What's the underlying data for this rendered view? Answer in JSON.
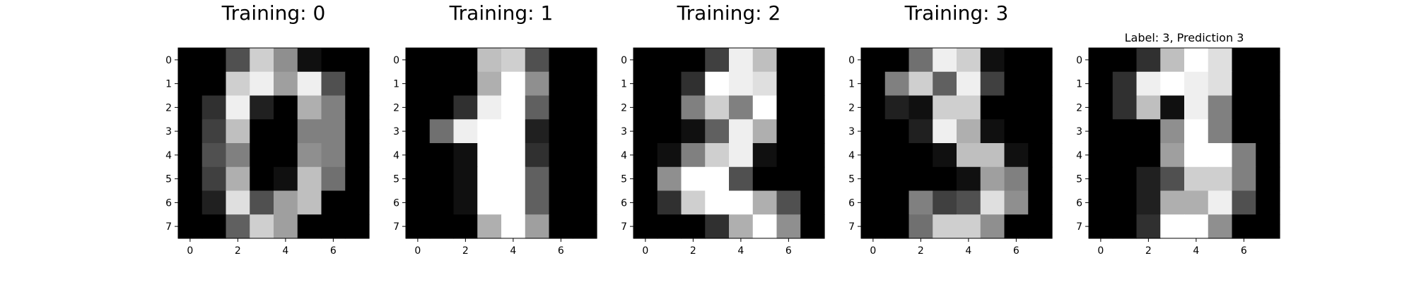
{
  "chart_data": [
    {
      "type": "heatmap",
      "title": "Training: 0",
      "colormap": "gray",
      "x_ticks": [
        "0",
        "2",
        "4",
        "6"
      ],
      "y_ticks": [
        "0",
        "1",
        "2",
        "3",
        "4",
        "5",
        "6",
        "7"
      ],
      "matrix": [
        [
          0,
          0,
          5,
          13,
          9,
          1,
          0,
          0
        ],
        [
          0,
          0,
          13,
          15,
          10,
          15,
          5,
          0
        ],
        [
          0,
          3,
          15,
          2,
          0,
          11,
          8,
          0
        ],
        [
          0,
          4,
          12,
          0,
          0,
          8,
          8,
          0
        ],
        [
          0,
          5,
          8,
          0,
          0,
          9,
          8,
          0
        ],
        [
          0,
          4,
          11,
          0,
          1,
          12,
          7,
          0
        ],
        [
          0,
          2,
          14,
          5,
          10,
          12,
          0,
          0
        ],
        [
          0,
          0,
          6,
          13,
          10,
          0,
          0,
          0
        ]
      ],
      "vmin": 0,
      "vmax": 16
    },
    {
      "type": "heatmap",
      "title": "Training: 1",
      "colormap": "gray",
      "x_ticks": [
        "0",
        "2",
        "4",
        "6"
      ],
      "y_ticks": [
        "0",
        "1",
        "2",
        "3",
        "4",
        "5",
        "6",
        "7"
      ],
      "matrix": [
        [
          0,
          0,
          0,
          12,
          13,
          5,
          0,
          0
        ],
        [
          0,
          0,
          0,
          11,
          16,
          9,
          0,
          0
        ],
        [
          0,
          0,
          3,
          15,
          16,
          6,
          0,
          0
        ],
        [
          0,
          7,
          15,
          16,
          16,
          2,
          0,
          0
        ],
        [
          0,
          0,
          1,
          16,
          16,
          3,
          0,
          0
        ],
        [
          0,
          0,
          1,
          16,
          16,
          6,
          0,
          0
        ],
        [
          0,
          0,
          1,
          16,
          16,
          6,
          0,
          0
        ],
        [
          0,
          0,
          0,
          11,
          16,
          10,
          0,
          0
        ]
      ],
      "vmin": 0,
      "vmax": 16
    },
    {
      "type": "heatmap",
      "title": "Training: 2",
      "colormap": "gray",
      "x_ticks": [
        "0",
        "2",
        "4",
        "6"
      ],
      "y_ticks": [
        "0",
        "1",
        "2",
        "3",
        "4",
        "5",
        "6",
        "7"
      ],
      "matrix": [
        [
          0,
          0,
          0,
          4,
          15,
          12,
          0,
          0
        ],
        [
          0,
          0,
          3,
          16,
          15,
          14,
          0,
          0
        ],
        [
          0,
          0,
          8,
          13,
          8,
          16,
          0,
          0
        ],
        [
          0,
          0,
          1,
          6,
          15,
          11,
          0,
          0
        ],
        [
          0,
          1,
          8,
          13,
          15,
          1,
          0,
          0
        ],
        [
          0,
          9,
          16,
          16,
          5,
          0,
          0,
          0
        ],
        [
          0,
          3,
          13,
          16,
          16,
          11,
          5,
          0
        ],
        [
          0,
          0,
          0,
          3,
          11,
          16,
          9,
          0
        ]
      ],
      "vmin": 0,
      "vmax": 16
    },
    {
      "type": "heatmap",
      "title": "Training: 3",
      "colormap": "gray",
      "x_ticks": [
        "0",
        "2",
        "4",
        "6"
      ],
      "y_ticks": [
        "0",
        "1",
        "2",
        "3",
        "4",
        "5",
        "6",
        "7"
      ],
      "matrix": [
        [
          0,
          0,
          7,
          15,
          13,
          1,
          0,
          0
        ],
        [
          0,
          8,
          13,
          6,
          15,
          4,
          0,
          0
        ],
        [
          0,
          2,
          1,
          13,
          13,
          0,
          0,
          0
        ],
        [
          0,
          0,
          2,
          15,
          11,
          1,
          0,
          0
        ],
        [
          0,
          0,
          0,
          1,
          12,
          12,
          1,
          0
        ],
        [
          0,
          0,
          0,
          0,
          1,
          10,
          8,
          0
        ],
        [
          0,
          0,
          8,
          4,
          5,
          14,
          9,
          0
        ],
        [
          0,
          0,
          7,
          13,
          13,
          9,
          0,
          0
        ]
      ],
      "vmin": 0,
      "vmax": 16
    },
    {
      "type": "heatmap",
      "title": "Label: 3, Prediction 3",
      "colormap": "gray",
      "x_ticks": [
        "0",
        "2",
        "4",
        "6"
      ],
      "y_ticks": [
        "0",
        "1",
        "2",
        "3",
        "4",
        "5",
        "6",
        "7"
      ],
      "matrix": [
        [
          0,
          0,
          3,
          12,
          16,
          14,
          0,
          0
        ],
        [
          0,
          3,
          15,
          16,
          15,
          14,
          0,
          0
        ],
        [
          0,
          3,
          12,
          1,
          15,
          8,
          0,
          0
        ],
        [
          0,
          0,
          0,
          9,
          16,
          8,
          0,
          0
        ],
        [
          0,
          0,
          0,
          10,
          16,
          16,
          8,
          0
        ],
        [
          0,
          0,
          2,
          5,
          13,
          13,
          8,
          0
        ],
        [
          0,
          0,
          2,
          11,
          11,
          15,
          5,
          0
        ],
        [
          0,
          0,
          3,
          16,
          16,
          9,
          0,
          0
        ]
      ],
      "vmin": 0,
      "vmax": 16
    }
  ]
}
